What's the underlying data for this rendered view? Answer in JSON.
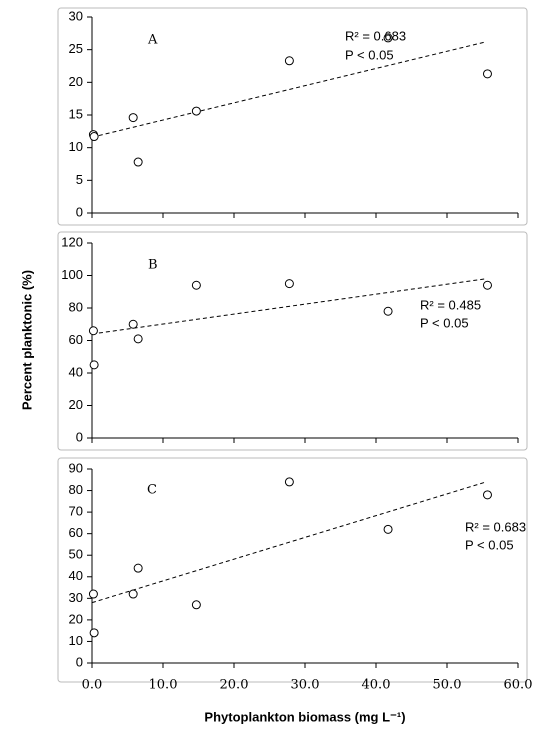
{
  "chart_data": [
    {
      "type": "scatter",
      "label": "A",
      "x": [
        0.2,
        0.3,
        5.8,
        6.5,
        14.7,
        27.8,
        41.7,
        55.7
      ],
      "y": [
        12,
        11.7,
        14.6,
        7.8,
        15.6,
        23.3,
        26.8,
        21.3
      ],
      "xlim": [
        0,
        60
      ],
      "xticks": [
        0,
        10,
        20,
        30,
        40,
        50,
        60
      ],
      "ylim": [
        0,
        30
      ],
      "yticks": [
        0,
        5,
        10,
        15,
        20,
        25,
        30
      ],
      "trendline": {
        "x": [
          0,
          55.5
        ],
        "y": [
          11.6,
          26.2
        ]
      },
      "annotations": [
        "R² = 0.683",
        "P < 0.05"
      ]
    },
    {
      "type": "scatter",
      "label": "B",
      "ylabel": "Percent planktonic (%)",
      "x": [
        0.2,
        0.3,
        5.8,
        6.5,
        14.7,
        27.8,
        41.7,
        55.7
      ],
      "y": [
        66,
        45,
        70,
        61,
        94,
        95,
        78,
        94
      ],
      "xlim": [
        0,
        60
      ],
      "xticks": [
        0,
        10,
        20,
        30,
        40,
        50,
        60
      ],
      "ylim": [
        0,
        120
      ],
      "yticks": [
        0,
        20,
        40,
        60,
        80,
        100,
        120
      ],
      "trendline": {
        "x": [
          0,
          55.5
        ],
        "y": [
          64,
          98
        ]
      },
      "annotations": [
        "R² = 0.485",
        "P < 0.05"
      ]
    },
    {
      "type": "scatter",
      "label": "C",
      "xlabel": "Phytoplankton biomass (mg L⁻¹)",
      "x": [
        0.2,
        0.3,
        5.8,
        6.5,
        14.7,
        27.8,
        41.7,
        55.7
      ],
      "y": [
        32,
        14,
        32,
        44,
        27,
        84,
        62,
        78
      ],
      "xlim": [
        0,
        60
      ],
      "xticks": [
        {
          "value": 0,
          "label": "0.0"
        },
        {
          "value": 10,
          "label": "10.0"
        },
        {
          "value": 20,
          "label": "20.0"
        },
        {
          "value": 30,
          "label": "30.0"
        },
        {
          "value": 40,
          "label": "40.0"
        },
        {
          "value": 50,
          "label": "50.0"
        },
        {
          "value": 60,
          "label": "60.0"
        }
      ],
      "ylim": [
        0,
        90
      ],
      "yticks": [
        0,
        10,
        20,
        30,
        40,
        50,
        60,
        70,
        80,
        90
      ],
      "trendline": {
        "x": [
          0,
          55.5
        ],
        "y": [
          28,
          84
        ]
      },
      "annotations": [
        "R² = 0.683",
        "P < 0.05"
      ]
    }
  ]
}
